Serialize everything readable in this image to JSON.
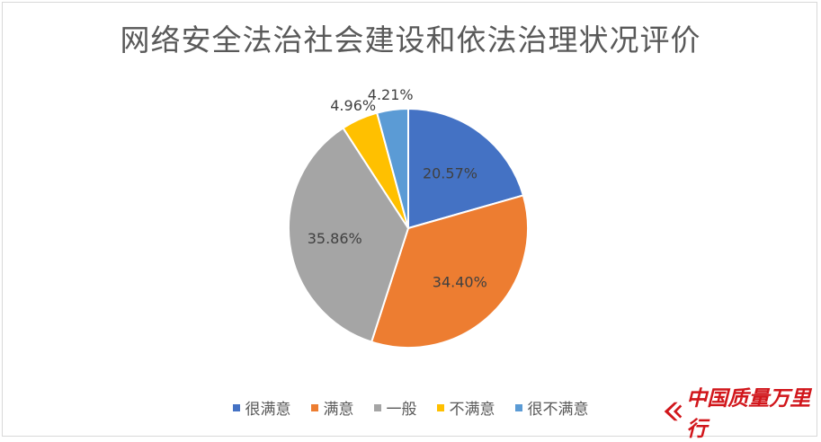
{
  "chart_data": {
    "type": "pie",
    "title": "网络安全法治社会建设和依法治理状况评价",
    "categories": [
      "很满意",
      "满意",
      "一般",
      "不满意",
      "很不满意"
    ],
    "values": [
      20.57,
      34.4,
      35.86,
      4.96,
      4.21
    ],
    "labels": [
      "20.57%",
      "34.40%",
      "35.86%",
      "4.96%",
      "4.21%"
    ],
    "colors": [
      "#4472c4",
      "#ed7d31",
      "#a5a5a5",
      "#ffc000",
      "#5b9bd5"
    ],
    "legend_position": "bottom"
  },
  "watermark": {
    "text": "中国质量万里行",
    "icon": "brand-logo-icon",
    "color": "#d1161b"
  }
}
